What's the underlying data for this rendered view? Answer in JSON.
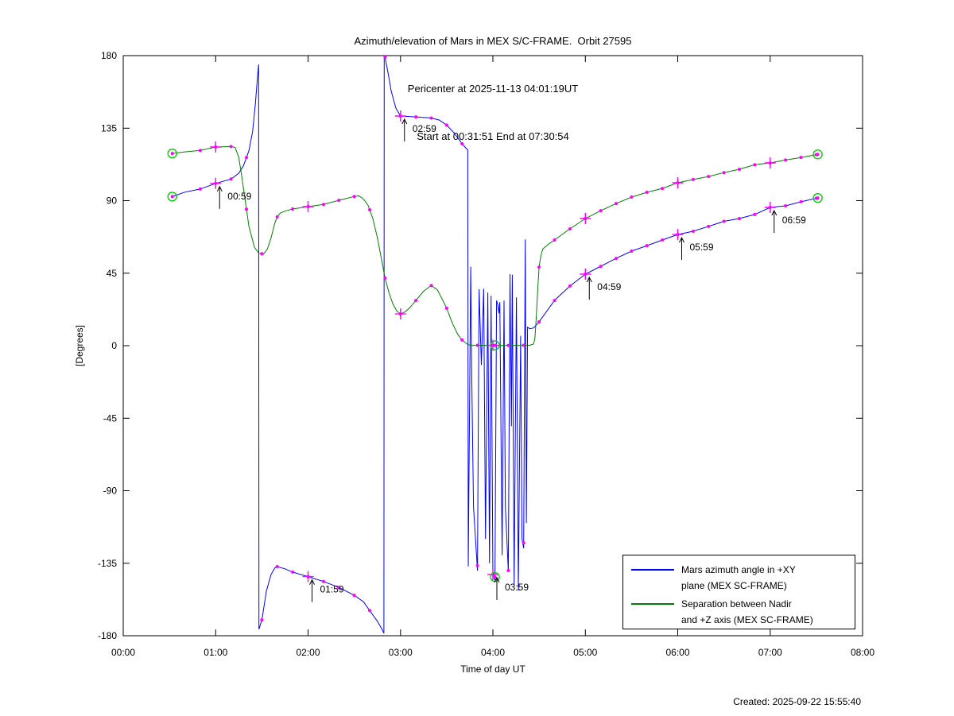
{
  "title": {
    "line1": "Azimuth/elevation of Mars in MEX S/C-FRAME.  Orbit 27595",
    "line2": "Pericenter at 2025-11-13 04:01:19UT",
    "line3": "Start at 00:31:51 End at 07:30:54"
  },
  "axes": {
    "xlabel": "Time of day UT",
    "ylabel": "[Degrees]"
  },
  "legend": {
    "entries": [
      {
        "color": "#0000ff",
        "line1": "Mars azimuth angle in +XY",
        "line2": "plane (MEX SC-FRAME)"
      },
      {
        "color": "#008000",
        "line1": "Separation between Nadir",
        "line2": "and +Z axis (MEX SC-FRAME)"
      }
    ]
  },
  "footer": {
    "created": "Created: 2025-09-22 15:55:40"
  },
  "chart_data": {
    "type": "line",
    "title": "Azimuth/elevation of Mars in MEX S/C-FRAME. Orbit 27595",
    "xlabel": "Time of day UT",
    "ylabel": "[Degrees]",
    "xlim": [
      0,
      8
    ],
    "ylim": [
      -180,
      180
    ],
    "grid": false,
    "legend_position": "bottom-right",
    "x_ticks": [
      {
        "t": 0,
        "label": "00:00"
      },
      {
        "t": 1,
        "label": "01:00"
      },
      {
        "t": 2,
        "label": "02:00"
      },
      {
        "t": 3,
        "label": "03:00"
      },
      {
        "t": 4,
        "label": "04:00"
      },
      {
        "t": 5,
        "label": "05:00"
      },
      {
        "t": 6,
        "label": "06:00"
      },
      {
        "t": 7,
        "label": "07:00"
      },
      {
        "t": 8,
        "label": "08:00"
      }
    ],
    "y_ticks": [
      180,
      135,
      90,
      45,
      0,
      -45,
      -90,
      -135,
      -180
    ],
    "colors": {
      "marker": "#ff00ff",
      "circle": "#00d200",
      "axis": "#000000"
    },
    "markers": {
      "dot_first_t": 0.8333,
      "dot_step_t": 0.1666667,
      "dot_last_t": 7.5,
      "plus_hours": [
        1,
        2,
        3,
        4,
        5,
        6,
        7
      ],
      "circle_times": [
        0.5306,
        4.0222,
        7.515
      ]
    },
    "annotations": [
      {
        "t": 1,
        "label": "00:59"
      },
      {
        "t": 2,
        "label": "01:59"
      },
      {
        "t": 3,
        "label": "02:59"
      },
      {
        "t": 4,
        "label": "03:59"
      },
      {
        "t": 5,
        "label": "04:59"
      },
      {
        "t": 6,
        "label": "05:59"
      },
      {
        "t": 7,
        "label": "06:59"
      }
    ],
    "series": [
      {
        "name": "mars-azimuth",
        "color": "#0000ff",
        "legend": [
          "Mars azimuth angle in +XY",
          "plane (MEX SC-FRAME)"
        ],
        "points": [
          [
            0.531,
            92.5
          ],
          [
            0.667,
            95.3
          ],
          [
            0.833,
            97.2
          ],
          [
            1.0,
            100.7
          ],
          [
            1.167,
            103.4
          ],
          [
            1.25,
            107.0
          ],
          [
            1.3,
            111.5
          ],
          [
            1.36,
            121.0
          ],
          [
            1.4,
            133.0
          ],
          [
            1.43,
            150.0
          ],
          [
            1.455,
            168.0
          ],
          [
            1.465,
            174.5
          ],
          [
            1.468,
            -176.0
          ],
          [
            1.5,
            -170.2
          ],
          [
            1.55,
            -152.0
          ],
          [
            1.6,
            -142.0
          ],
          [
            1.64,
            -138.0
          ],
          [
            1.667,
            -137.1
          ],
          [
            1.75,
            -138.5
          ],
          [
            1.833,
            -140.5
          ],
          [
            2.0,
            -143.3
          ],
          [
            2.167,
            -146.3
          ],
          [
            2.333,
            -150.0
          ],
          [
            2.5,
            -154.9
          ],
          [
            2.6,
            -159.0
          ],
          [
            2.667,
            -164.4
          ],
          [
            2.75,
            -171.0
          ],
          [
            2.8,
            -176.0
          ],
          [
            2.821,
            -178.4
          ],
          [
            2.824,
            179.8
          ],
          [
            2.833,
            179.1
          ],
          [
            2.87,
            168.0
          ],
          [
            2.9,
            158.0
          ],
          [
            2.95,
            147.5
          ],
          [
            3.0,
            142.5
          ],
          [
            3.167,
            142.0
          ],
          [
            3.333,
            141.3
          ],
          [
            3.42,
            140.0
          ],
          [
            3.5,
            136.9
          ],
          [
            3.58,
            132.0
          ],
          [
            3.667,
            125.3
          ],
          [
            3.71,
            122.5
          ],
          [
            3.728,
            121.5
          ],
          [
            3.733,
            -137.0
          ],
          [
            3.76,
            49.0
          ],
          [
            3.77,
            -15.0
          ],
          [
            3.79,
            -100.0
          ],
          [
            3.833,
            -139.6
          ],
          [
            3.85,
            35.0
          ],
          [
            3.875,
            -12.0
          ],
          [
            3.9,
            35.3
          ],
          [
            3.92,
            -120.0
          ],
          [
            3.945,
            33.0
          ],
          [
            3.963,
            -135.0
          ],
          [
            3.98,
            31.0
          ],
          [
            4.0,
            -142.0
          ],
          [
            4.022,
            -145.5
          ],
          [
            4.04,
            28.0
          ],
          [
            4.055,
            25.0
          ],
          [
            4.065,
            20.0
          ],
          [
            4.075,
            27.0
          ],
          [
            4.1,
            -130.0
          ],
          [
            4.12,
            28.0
          ],
          [
            4.135,
            -100.0
          ],
          [
            4.167,
            -140.0
          ],
          [
            4.185,
            44.4
          ],
          [
            4.2,
            -50.0
          ],
          [
            4.21,
            44.0
          ],
          [
            4.23,
            -148.0
          ],
          [
            4.255,
            30.0
          ],
          [
            4.275,
            -152.0
          ],
          [
            4.3,
            6.0
          ],
          [
            4.315,
            -120.0
          ],
          [
            4.333,
            -125.7
          ],
          [
            4.35,
            66.0
          ],
          [
            4.362,
            -110.0
          ],
          [
            4.375,
            11.5
          ],
          [
            4.4,
            10.5
          ],
          [
            4.44,
            11.0
          ],
          [
            4.5,
            14.8
          ],
          [
            4.667,
            28.1
          ],
          [
            4.833,
            37.0
          ],
          [
            5.0,
            44.4
          ],
          [
            5.167,
            49.3
          ],
          [
            5.333,
            54.2
          ],
          [
            5.5,
            58.7
          ],
          [
            5.667,
            62.1
          ],
          [
            5.833,
            65.6
          ],
          [
            6.0,
            69.0
          ],
          [
            6.167,
            71.0
          ],
          [
            6.333,
            74.0
          ],
          [
            6.5,
            77.2
          ],
          [
            6.667,
            78.9
          ],
          [
            6.833,
            81.4
          ],
          [
            7.0,
            85.8
          ],
          [
            7.167,
            86.8
          ],
          [
            7.333,
            89.3
          ],
          [
            7.515,
            91.7
          ]
        ]
      },
      {
        "name": "nadir-separation",
        "color": "#008000",
        "legend": [
          "Separation between Nadir",
          "and +Z axis (MEX SC-FRAME)"
        ],
        "points": [
          [
            0.531,
            119.3
          ],
          [
            0.667,
            120.3
          ],
          [
            0.833,
            121.2
          ],
          [
            1.0,
            123.3
          ],
          [
            1.167,
            123.6
          ],
          [
            1.21,
            123.0
          ],
          [
            1.25,
            117.0
          ],
          [
            1.28,
            106.0
          ],
          [
            1.32,
            90.0
          ],
          [
            1.36,
            74.0
          ],
          [
            1.42,
            61.0
          ],
          [
            1.47,
            57.2
          ],
          [
            1.52,
            57.0
          ],
          [
            1.56,
            60.0
          ],
          [
            1.6,
            67.0
          ],
          [
            1.64,
            76.0
          ],
          [
            1.667,
            80.0
          ],
          [
            1.7,
            82.3
          ],
          [
            1.75,
            83.5
          ],
          [
            1.833,
            84.8
          ],
          [
            2.0,
            86.3
          ],
          [
            2.167,
            87.7
          ],
          [
            2.333,
            90.2
          ],
          [
            2.5,
            92.6
          ],
          [
            2.55,
            93.0
          ],
          [
            2.6,
            91.0
          ],
          [
            2.65,
            87.0
          ],
          [
            2.7,
            79.0
          ],
          [
            2.75,
            67.0
          ],
          [
            2.8,
            52.0
          ],
          [
            2.833,
            42.0
          ],
          [
            2.875,
            33.0
          ],
          [
            2.917,
            26.0
          ],
          [
            2.96,
            21.5
          ],
          [
            3.0,
            19.7
          ],
          [
            3.05,
            21.0
          ],
          [
            3.1,
            23.5
          ],
          [
            3.167,
            28.1
          ],
          [
            3.25,
            33.8
          ],
          [
            3.333,
            37.4
          ],
          [
            3.4,
            34.5
          ],
          [
            3.45,
            29.0
          ],
          [
            3.5,
            23.2
          ],
          [
            3.56,
            14.0
          ],
          [
            3.62,
            7.0
          ],
          [
            3.667,
            3.5
          ],
          [
            3.72,
            1.0
          ],
          [
            3.75,
            0.3
          ],
          [
            4.0,
            0.2
          ],
          [
            4.022,
            0.2
          ],
          [
            4.3,
            0.2
          ],
          [
            4.4,
            0.3
          ],
          [
            4.44,
            1.0
          ],
          [
            4.455,
            5.0
          ],
          [
            4.47,
            18.0
          ],
          [
            4.485,
            35.0
          ],
          [
            4.5,
            48.8
          ],
          [
            4.52,
            56.0
          ],
          [
            4.54,
            60.0
          ],
          [
            4.6,
            63.0
          ],
          [
            4.667,
            65.6
          ],
          [
            4.833,
            72.5
          ],
          [
            5.0,
            78.9
          ],
          [
            5.167,
            83.8
          ],
          [
            5.333,
            88.2
          ],
          [
            5.5,
            92.2
          ],
          [
            5.667,
            95.2
          ],
          [
            5.833,
            97.6
          ],
          [
            6.0,
            101.1
          ],
          [
            6.167,
            103.1
          ],
          [
            6.333,
            105.0
          ],
          [
            6.5,
            107.4
          ],
          [
            6.667,
            109.5
          ],
          [
            6.833,
            112.3
          ],
          [
            7.0,
            113.4
          ],
          [
            7.167,
            115.2
          ],
          [
            7.333,
            116.8
          ],
          [
            7.515,
            118.7
          ]
        ]
      }
    ]
  }
}
